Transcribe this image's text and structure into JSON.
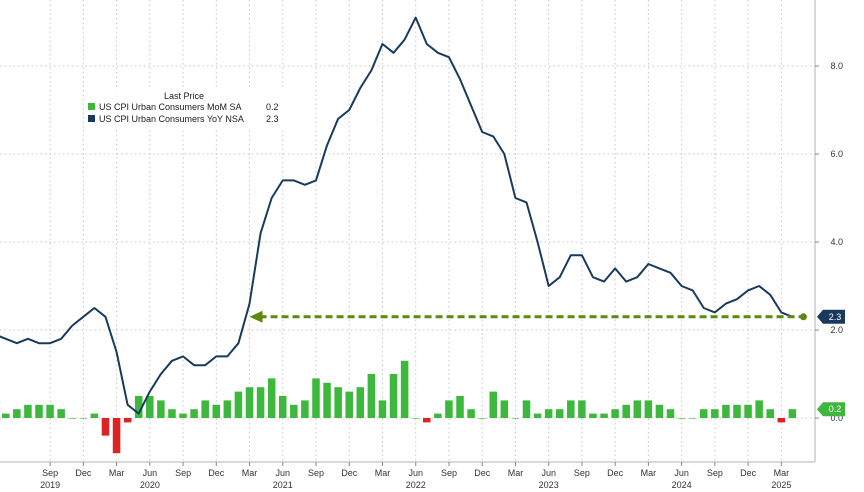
{
  "chart_data": {
    "type": "line",
    "legend": {
      "title": "Last Price",
      "placement": "top-left",
      "entries": [
        {
          "label": "US CPI Urban Consumers MoM SA",
          "value": "0.2",
          "color": "#3db83d"
        },
        {
          "label": "US CPI Urban Consumers YoY NSA",
          "value": "2.3",
          "color": "#1a3a5c"
        }
      ]
    },
    "y_axis": {
      "position": "right",
      "ticks": [
        "0.0",
        "2.0",
        "4.0",
        "6.0",
        "8.0"
      ],
      "tick_values": [
        0,
        2,
        4,
        6,
        8
      ],
      "range": [
        -1.0,
        9.5
      ]
    },
    "x_axis": {
      "range": [
        2019.29,
        2025.42
      ],
      "months": [
        {
          "label": "Sep",
          "t": 2019.667
        },
        {
          "label": "Dec",
          "t": 2019.917
        },
        {
          "label": "Mar",
          "t": 2020.167
        },
        {
          "label": "Jun",
          "t": 2020.417
        },
        {
          "label": "Sep",
          "t": 2020.667
        },
        {
          "label": "Dec",
          "t": 2020.917
        },
        {
          "label": "Mar",
          "t": 2021.167
        },
        {
          "label": "Jun",
          "t": 2021.417
        },
        {
          "label": "Sep",
          "t": 2021.667
        },
        {
          "label": "Dec",
          "t": 2021.917
        },
        {
          "label": "Mar",
          "t": 2022.167
        },
        {
          "label": "Jun",
          "t": 2022.417
        },
        {
          "label": "Sep",
          "t": 2022.667
        },
        {
          "label": "Dec",
          "t": 2022.917
        },
        {
          "label": "Mar",
          "t": 2023.167
        },
        {
          "label": "Jun",
          "t": 2023.417
        },
        {
          "label": "Sep",
          "t": 2023.667
        },
        {
          "label": "Dec",
          "t": 2023.917
        },
        {
          "label": "Mar",
          "t": 2024.167
        },
        {
          "label": "Jun",
          "t": 2024.417
        },
        {
          "label": "Sep",
          "t": 2024.667
        },
        {
          "label": "Dec",
          "t": 2024.917
        },
        {
          "label": "Mar",
          "t": 2025.167
        }
      ],
      "years": [
        {
          "label": "2019",
          "t": 2019.667
        },
        {
          "label": "2020",
          "t": 2020.417
        },
        {
          "label": "2021",
          "t": 2021.417
        },
        {
          "label": "2022",
          "t": 2022.417
        },
        {
          "label": "2023",
          "t": 2023.417
        },
        {
          "label": "2024",
          "t": 2024.417
        },
        {
          "label": "2025",
          "t": 2025.167
        }
      ]
    },
    "series": [
      {
        "name": "US CPI Urban Consumers YoY NSA",
        "kind": "line",
        "color": "#1a3a5c",
        "start": "2019-04",
        "values": [
          1.9,
          1.8,
          1.7,
          1.8,
          1.7,
          1.7,
          1.8,
          2.1,
          2.3,
          2.5,
          2.3,
          1.5,
          0.3,
          0.1,
          0.6,
          1.0,
          1.3,
          1.4,
          1.2,
          1.2,
          1.4,
          1.4,
          1.7,
          2.6,
          4.2,
          5.0,
          5.4,
          5.4,
          5.3,
          5.4,
          6.2,
          6.8,
          7.0,
          7.5,
          7.9,
          8.5,
          8.3,
          8.6,
          9.1,
          8.5,
          8.3,
          8.2,
          7.7,
          7.1,
          6.5,
          6.4,
          6.0,
          5.0,
          4.9,
          4.0,
          3.0,
          3.2,
          3.7,
          3.7,
          3.2,
          3.1,
          3.4,
          3.1,
          3.2,
          3.5,
          3.4,
          3.3,
          3.0,
          2.9,
          2.5,
          2.4,
          2.6,
          2.7,
          2.9,
          3.0,
          2.8,
          2.4,
          2.3
        ]
      },
      {
        "name": "US CPI Urban Consumers MoM SA",
        "kind": "bar",
        "color_positive": "#3db83d",
        "color_negative": "#dd2222",
        "start": "2019-04",
        "values": [
          0.3,
          0.1,
          0.2,
          0.3,
          0.3,
          0.3,
          0.2,
          0.0,
          0.0,
          0.1,
          -0.4,
          -0.8,
          -0.1,
          0.5,
          0.5,
          0.4,
          0.2,
          0.1,
          0.2,
          0.4,
          0.3,
          0.4,
          0.6,
          0.7,
          0.7,
          0.9,
          0.5,
          0.3,
          0.4,
          0.9,
          0.8,
          0.7,
          0.6,
          0.7,
          1.0,
          0.4,
          1.0,
          1.3,
          0.0,
          -0.1,
          0.1,
          0.4,
          0.5,
          0.2,
          0.0,
          0.6,
          0.4,
          0.0,
          0.4,
          0.1,
          0.2,
          0.2,
          0.4,
          0.4,
          0.1,
          0.1,
          0.2,
          0.3,
          0.4,
          0.4,
          0.3,
          0.2,
          0.0,
          0.0,
          0.2,
          0.2,
          0.3,
          0.3,
          0.3,
          0.4,
          0.2,
          -0.1,
          0.2
        ]
      }
    ],
    "reference_arrow": {
      "value": 2.3,
      "from_t": 2021.167,
      "to_t": 2025.333,
      "color": "#5a8a10"
    },
    "value_tags": [
      {
        "text": "2.3",
        "value": 2.3,
        "color": "#1a3a5c"
      },
      {
        "text": "0.2",
        "value": 0.2,
        "color": "#3db83d"
      }
    ],
    "grid": true
  }
}
